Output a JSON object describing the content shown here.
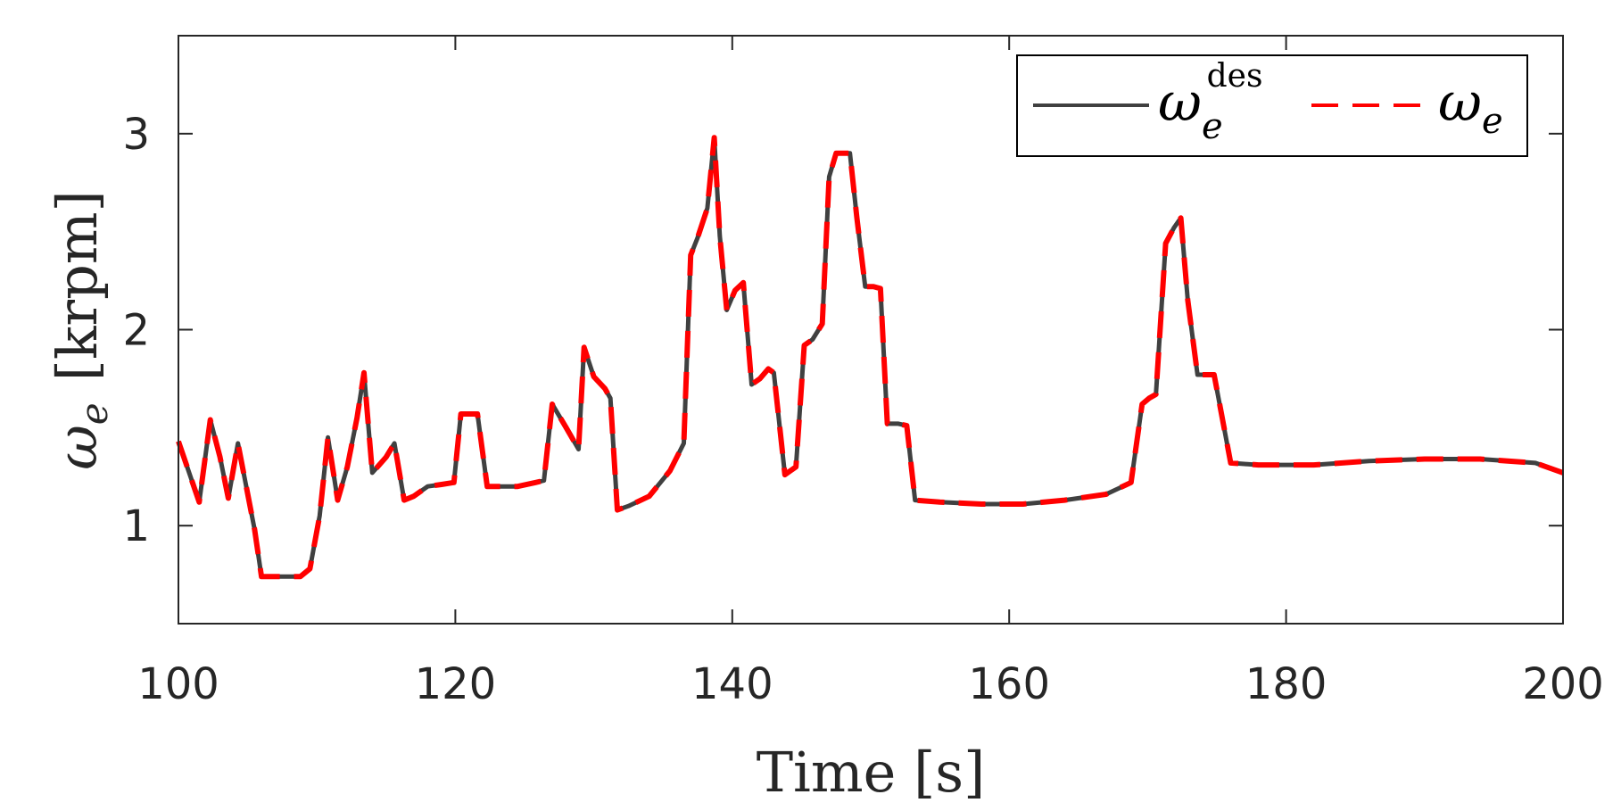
{
  "chart_data": {
    "type": "line",
    "xlabel": "Time [s]",
    "ylabel_symbol": "ω",
    "ylabel_subscript": "e",
    "ylabel_unit": "[krpm]",
    "xlim": [
      100,
      200
    ],
    "ylim": [
      0.5,
      3.5
    ],
    "xticks": [
      100,
      120,
      140,
      160,
      180,
      200
    ],
    "yticks": [
      1,
      2,
      3
    ],
    "xtick_labels": [
      "100",
      "120",
      "140",
      "160",
      "180",
      "200"
    ],
    "ytick_labels": [
      "1",
      "2",
      "3"
    ],
    "grid": false,
    "legend": {
      "placement": "top-right",
      "entries": [
        {
          "symbol": "ω",
          "subscript": "e",
          "superscript": "des"
        },
        {
          "symbol": "ω",
          "subscript": "e",
          "superscript": ""
        }
      ]
    },
    "series": [
      {
        "color": "#404040",
        "style": "solid",
        "x": [
          100,
          101.5,
          102.3,
          103,
          103.6,
          104.3,
          104.9,
          105.5,
          106,
          107,
          108,
          108.8,
          109.5,
          110.2,
          110.8,
          111.5,
          112.2,
          112.9,
          113.4,
          114,
          115,
          115.6,
          116.3,
          117,
          118,
          119,
          119.9,
          120.4,
          121,
          121.6,
          122.3,
          123,
          124.5,
          125.8,
          126.4,
          127,
          128,
          128.9,
          129.3,
          130,
          130.8,
          131.2,
          131.7,
          132.5,
          134,
          135.5,
          136.5,
          137,
          137.5,
          138.2,
          138.7,
          139.1,
          139.6,
          140.2,
          140.8,
          141.4,
          142,
          142.6,
          143,
          143.8,
          144.6,
          145.2,
          145.8,
          146.5,
          147,
          147.5,
          148,
          148.5,
          149,
          149.6,
          150.2,
          150.7,
          151.2,
          152,
          152.6,
          153.2,
          155,
          158,
          161,
          164,
          167,
          168.2,
          168.8,
          169.6,
          170.1,
          170.6,
          171.3,
          171.9,
          172.4,
          172.9,
          173.6,
          174.2,
          174.8,
          176,
          178,
          182,
          186,
          190,
          194,
          198,
          200
        ],
        "y": [
          1.43,
          1.12,
          1.54,
          1.35,
          1.14,
          1.42,
          1.2,
          0.98,
          0.74,
          0.74,
          0.74,
          0.74,
          0.78,
          1.05,
          1.45,
          1.13,
          1.3,
          1.55,
          1.78,
          1.27,
          1.35,
          1.42,
          1.13,
          1.15,
          1.2,
          1.21,
          1.22,
          1.57,
          1.57,
          1.57,
          1.2,
          1.2,
          1.2,
          1.22,
          1.23,
          1.62,
          1.5,
          1.39,
          1.91,
          1.76,
          1.7,
          1.65,
          1.08,
          1.1,
          1.15,
          1.28,
          1.42,
          2.38,
          2.47,
          2.62,
          2.98,
          2.48,
          2.1,
          2.2,
          2.24,
          1.72,
          1.75,
          1.8,
          1.78,
          1.26,
          1.3,
          1.92,
          1.95,
          2.03,
          2.78,
          2.9,
          2.9,
          2.9,
          2.57,
          2.22,
          2.22,
          2.21,
          1.52,
          1.52,
          1.51,
          1.13,
          1.12,
          1.11,
          1.11,
          1.13,
          1.16,
          1.2,
          1.22,
          1.62,
          1.65,
          1.67,
          2.44,
          2.52,
          2.57,
          2.15,
          1.77,
          1.77,
          1.77,
          1.32,
          1.31,
          1.31,
          1.33,
          1.34,
          1.34,
          1.32,
          1.27
        ]
      },
      {
        "color": "#ff0000",
        "style": "dashed",
        "x": [
          100,
          101.5,
          102.3,
          103,
          103.6,
          104.3,
          104.9,
          105.5,
          106,
          107,
          108,
          108.8,
          109.5,
          110.2,
          110.8,
          111.5,
          112.2,
          112.9,
          113.4,
          114,
          115,
          115.6,
          116.3,
          117,
          118,
          119,
          119.9,
          120.4,
          121,
          121.6,
          122.3,
          123,
          124.5,
          125.8,
          126.4,
          127,
          128,
          128.9,
          129.3,
          130,
          130.8,
          131.2,
          131.7,
          132.5,
          134,
          135.5,
          136.5,
          137,
          137.5,
          138.2,
          138.7,
          139.1,
          139.6,
          140.2,
          140.8,
          141.4,
          142,
          142.6,
          143,
          143.8,
          144.6,
          145.2,
          145.8,
          146.5,
          147,
          147.5,
          148,
          148.5,
          149,
          149.6,
          150.2,
          150.7,
          151.2,
          152,
          152.6,
          153.2,
          155,
          158,
          161,
          164,
          167,
          168.2,
          168.8,
          169.6,
          170.1,
          170.6,
          171.3,
          171.9,
          172.4,
          172.9,
          173.6,
          174.2,
          174.8,
          176,
          178,
          182,
          186,
          190,
          194,
          198,
          200
        ],
        "y": [
          1.43,
          1.12,
          1.54,
          1.35,
          1.14,
          1.42,
          1.2,
          0.98,
          0.74,
          0.74,
          0.74,
          0.74,
          0.78,
          1.05,
          1.45,
          1.13,
          1.3,
          1.55,
          1.78,
          1.27,
          1.35,
          1.42,
          1.13,
          1.15,
          1.2,
          1.21,
          1.22,
          1.57,
          1.57,
          1.57,
          1.2,
          1.2,
          1.2,
          1.22,
          1.23,
          1.62,
          1.5,
          1.39,
          1.91,
          1.76,
          1.7,
          1.65,
          1.08,
          1.1,
          1.15,
          1.28,
          1.42,
          2.38,
          2.47,
          2.62,
          2.98,
          2.48,
          2.1,
          2.2,
          2.24,
          1.72,
          1.75,
          1.8,
          1.78,
          1.26,
          1.3,
          1.92,
          1.95,
          2.03,
          2.78,
          2.9,
          2.9,
          2.9,
          2.57,
          2.22,
          2.22,
          2.21,
          1.52,
          1.52,
          1.51,
          1.13,
          1.12,
          1.11,
          1.11,
          1.13,
          1.16,
          1.2,
          1.22,
          1.62,
          1.65,
          1.67,
          2.44,
          2.52,
          2.57,
          2.15,
          1.77,
          1.77,
          1.77,
          1.32,
          1.31,
          1.31,
          1.33,
          1.34,
          1.34,
          1.32,
          1.27
        ]
      }
    ]
  }
}
